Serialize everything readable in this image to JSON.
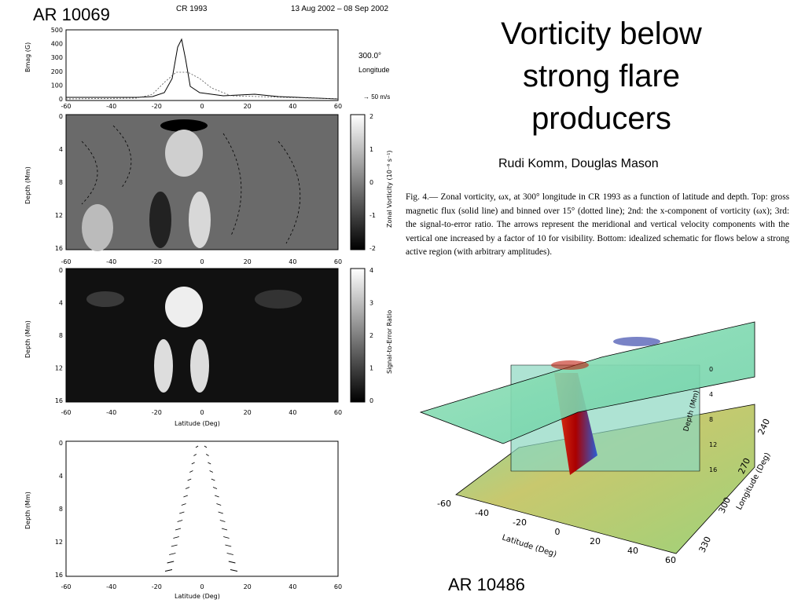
{
  "slide": {
    "title_lines": [
      "Vorticity below",
      "strong flare",
      "producers"
    ],
    "authors": "Rudi Komm, Douglas Mason",
    "left_label": "AR 10069",
    "right_label": "AR 10486"
  },
  "figure_header": {
    "carrington": "CR 1993",
    "dates": "13 Aug 2002 – 08 Sep 2002",
    "longitude_value": "300.0°",
    "longitude_label": "Longitude",
    "arrow_scale": "→ 50 m/s"
  },
  "caption": {
    "label": "Fig. 4.—",
    "text": "Zonal vorticity, ωx, at 300° longitude in CR 1993 as a function of latitude and depth. Top: gross magnetic flux (solid line) and binned over 15° (dotted line); 2nd: the x-component of vorticity (ωx); 3rd: the signal-to-error ratio. The arrows represent the meridional and vertical velocity components with the vertical one increased by a factor of 10 for visibility. Bottom: idealized schematic for flows below a strong active region (with arbitrary amplitudes)."
  },
  "panels": {
    "flux": {
      "ylabel": "Bmag (G)",
      "yticks": [
        "500",
        "400",
        "300",
        "200",
        "100",
        "0"
      ]
    },
    "vorticity": {
      "ylabel": "Depth (Mm)",
      "yticks": [
        "0",
        "4",
        "8",
        "12",
        "16"
      ],
      "colorbar_label": "Zonal Vorticity (10⁻⁶ s⁻¹)",
      "colorbar_ticks": [
        "2",
        "1",
        "0",
        "-1",
        "-2"
      ]
    },
    "snr": {
      "ylabel": "Depth (Mm)",
      "yticks": [
        "0",
        "4",
        "8",
        "12",
        "16"
      ],
      "colorbar_label": "Signal-to-Error Ratio",
      "colorbar_ticks": [
        "4",
        "3",
        "2",
        "1",
        "0"
      ],
      "xlabel": "Latitude (Deg)"
    },
    "schematic": {
      "ylabel": "Depth (Mm)",
      "yticks": [
        "0",
        "4",
        "8",
        "12",
        "16"
      ],
      "xlabel": "Latitude (Deg)"
    },
    "xticks": [
      "-60",
      "-40",
      "-20",
      "0",
      "20",
      "40",
      "60"
    ]
  },
  "render3d": {
    "depth_label": "Depth (Mm)",
    "depth_ticks": [
      "0",
      "4",
      "8",
      "12",
      "16"
    ],
    "latitude_label": "Latitude (Deg)",
    "latitude_ticks": [
      "-60",
      "-40",
      "-20",
      "0",
      "20",
      "40",
      "60"
    ],
    "longitude_label": "Longitude (Deg)",
    "longitude_ticks": [
      "240",
      "270",
      "300",
      "330"
    ]
  }
}
